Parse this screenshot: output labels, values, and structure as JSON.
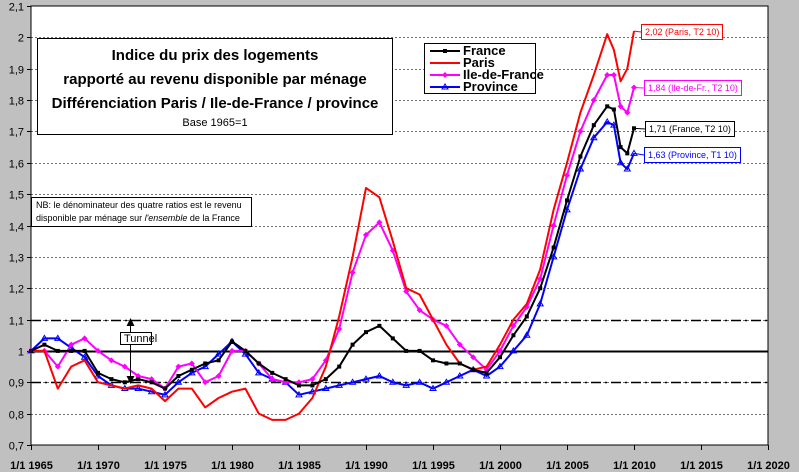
{
  "chart_data": {
    "type": "line",
    "title_lines": [
      "Indice du prix des logements",
      "rapporté au revenu disponible par ménage",
      "Différenciation Paris / Ile-de-France / province"
    ],
    "subtitle": "Base 1965=1",
    "note": {
      "text_before": "NB: le dénominateur des quatre ratios est le revenu disponible par ménage sur ",
      "italic": "l'ensemble",
      "text_after": " de la France"
    },
    "annotation": "Tunnel",
    "x_ticks": [
      "1/1 1965",
      "1/1 1970",
      "1/1 1975",
      "1/1 1980",
      "1/1 1985",
      "1/1 1990",
      "1/1 1995",
      "1/1 2000",
      "1/1 2005",
      "1/1 2010",
      "1/1 2015",
      "1/1 2020"
    ],
    "y_ticks": [
      "0,7",
      "0,8",
      "0,9",
      "1",
      "1,1",
      "1,2",
      "1,3",
      "1,4",
      "1,5",
      "1,6",
      "1,7",
      "1,8",
      "1,9",
      "2",
      "2,1"
    ],
    "xlim": [
      1965,
      2020
    ],
    "ylim": [
      0.7,
      2.1
    ],
    "reference_lines": {
      "solid": 1.0,
      "dashed": [
        1.1,
        0.9
      ]
    },
    "grid": "horizontal dashed",
    "legend_position": "top-center",
    "series": [
      {
        "name": "France",
        "color": "#000000",
        "marker": "square",
        "points": [
          [
            1965,
            1.0
          ],
          [
            1966,
            1.02
          ],
          [
            1967,
            1.0
          ],
          [
            1968,
            1.0
          ],
          [
            1969,
            1.0
          ],
          [
            1970,
            0.93
          ],
          [
            1971,
            0.91
          ],
          [
            1972,
            0.9
          ],
          [
            1973,
            0.91
          ],
          [
            1974,
            0.9
          ],
          [
            1975,
            0.88
          ],
          [
            1976,
            0.92
          ],
          [
            1977,
            0.94
          ],
          [
            1978,
            0.96
          ],
          [
            1979,
            0.97
          ],
          [
            1980,
            1.03
          ],
          [
            1981,
            1.0
          ],
          [
            1982,
            0.96
          ],
          [
            1983,
            0.93
          ],
          [
            1984,
            0.91
          ],
          [
            1985,
            0.89
          ],
          [
            1986,
            0.89
          ],
          [
            1987,
            0.91
          ],
          [
            1988,
            0.95
          ],
          [
            1989,
            1.02
          ],
          [
            1990,
            1.06
          ],
          [
            1991,
            1.08
          ],
          [
            1992,
            1.04
          ],
          [
            1993,
            1.0
          ],
          [
            1994,
            1.0
          ],
          [
            1995,
            0.97
          ],
          [
            1996,
            0.96
          ],
          [
            1997,
            0.96
          ],
          [
            1998,
            0.94
          ],
          [
            1999,
            0.93
          ],
          [
            2000,
            0.98
          ],
          [
            2001,
            1.05
          ],
          [
            2002,
            1.11
          ],
          [
            2003,
            1.2
          ],
          [
            2004,
            1.33
          ],
          [
            2005,
            1.48
          ],
          [
            2006,
            1.62
          ],
          [
            2007,
            1.72
          ],
          [
            2008,
            1.78
          ],
          [
            2008.5,
            1.77
          ],
          [
            2009,
            1.65
          ],
          [
            2009.5,
            1.63
          ],
          [
            2010,
            1.71
          ]
        ]
      },
      {
        "name": "Paris",
        "color": "#ff0000",
        "marker": "none",
        "points": [
          [
            1965,
            1.0
          ],
          [
            1966,
            1.0
          ],
          [
            1967,
            0.88
          ],
          [
            1968,
            0.95
          ],
          [
            1969,
            0.97
          ],
          [
            1970,
            0.9
          ],
          [
            1971,
            0.89
          ],
          [
            1972,
            0.88
          ],
          [
            1973,
            0.89
          ],
          [
            1974,
            0.88
          ],
          [
            1975,
            0.84
          ],
          [
            1976,
            0.88
          ],
          [
            1977,
            0.88
          ],
          [
            1978,
            0.82
          ],
          [
            1979,
            0.85
          ],
          [
            1980,
            0.87
          ],
          [
            1981,
            0.88
          ],
          [
            1982,
            0.8
          ],
          [
            1983,
            0.78
          ],
          [
            1984,
            0.78
          ],
          [
            1985,
            0.8
          ],
          [
            1986,
            0.85
          ],
          [
            1987,
            0.95
          ],
          [
            1988,
            1.11
          ],
          [
            1989,
            1.3
          ],
          [
            1990,
            1.52
          ],
          [
            1991,
            1.49
          ],
          [
            1992,
            1.35
          ],
          [
            1993,
            1.2
          ],
          [
            1994,
            1.18
          ],
          [
            1995,
            1.1
          ],
          [
            1996,
            1.02
          ],
          [
            1997,
            0.96
          ],
          [
            1998,
            0.94
          ],
          [
            1999,
            0.95
          ],
          [
            2000,
            1.02
          ],
          [
            2001,
            1.1
          ],
          [
            2002,
            1.15
          ],
          [
            2003,
            1.26
          ],
          [
            2004,
            1.45
          ],
          [
            2005,
            1.6
          ],
          [
            2006,
            1.76
          ],
          [
            2007,
            1.88
          ],
          [
            2008,
            2.01
          ],
          [
            2008.5,
            1.96
          ],
          [
            2009,
            1.86
          ],
          [
            2009.5,
            1.9
          ],
          [
            2010,
            2.02
          ]
        ]
      },
      {
        "name": "Ile-de-France",
        "color": "#ff00ff",
        "marker": "diamond",
        "points": [
          [
            1965,
            1.0
          ],
          [
            1966,
            1.0
          ],
          [
            1967,
            0.95
          ],
          [
            1968,
            1.02
          ],
          [
            1969,
            1.04
          ],
          [
            1970,
            1.0
          ],
          [
            1971,
            0.97
          ],
          [
            1972,
            0.95
          ],
          [
            1973,
            0.92
          ],
          [
            1974,
            0.91
          ],
          [
            1975,
            0.88
          ],
          [
            1976,
            0.95
          ],
          [
            1977,
            0.96
          ],
          [
            1978,
            0.9
          ],
          [
            1979,
            0.92
          ],
          [
            1980,
            1.0
          ],
          [
            1981,
            1.0
          ],
          [
            1982,
            0.96
          ],
          [
            1983,
            0.91
          ],
          [
            1984,
            0.9
          ],
          [
            1985,
            0.9
          ],
          [
            1986,
            0.91
          ],
          [
            1987,
            0.97
          ],
          [
            1988,
            1.07
          ],
          [
            1989,
            1.25
          ],
          [
            1990,
            1.37
          ],
          [
            1991,
            1.41
          ],
          [
            1992,
            1.32
          ],
          [
            1993,
            1.19
          ],
          [
            1994,
            1.13
          ],
          [
            1995,
            1.1
          ],
          [
            1996,
            1.08
          ],
          [
            1997,
            1.02
          ],
          [
            1998,
            0.98
          ],
          [
            1999,
            0.94
          ],
          [
            2000,
            1.0
          ],
          [
            2001,
            1.08
          ],
          [
            2002,
            1.14
          ],
          [
            2003,
            1.23
          ],
          [
            2004,
            1.4
          ],
          [
            2005,
            1.56
          ],
          [
            2006,
            1.7
          ],
          [
            2007,
            1.8
          ],
          [
            2008,
            1.88
          ],
          [
            2008.5,
            1.88
          ],
          [
            2009,
            1.78
          ],
          [
            2009.5,
            1.76
          ],
          [
            2010,
            1.84
          ]
        ]
      },
      {
        "name": "Province",
        "color": "#0000ff",
        "marker": "triangle",
        "points": [
          [
            1965,
            1.0
          ],
          [
            1966,
            1.04
          ],
          [
            1967,
            1.04
          ],
          [
            1968,
            1.01
          ],
          [
            1969,
            0.98
          ],
          [
            1970,
            0.92
          ],
          [
            1971,
            0.89
          ],
          [
            1972,
            0.88
          ],
          [
            1973,
            0.88
          ],
          [
            1974,
            0.87
          ],
          [
            1975,
            0.86
          ],
          [
            1976,
            0.9
          ],
          [
            1977,
            0.93
          ],
          [
            1978,
            0.95
          ],
          [
            1979,
            0.99
          ],
          [
            1980,
            1.03
          ],
          [
            1981,
            0.99
          ],
          [
            1982,
            0.93
          ],
          [
            1983,
            0.91
          ],
          [
            1984,
            0.9
          ],
          [
            1985,
            0.86
          ],
          [
            1986,
            0.87
          ],
          [
            1987,
            0.88
          ],
          [
            1988,
            0.89
          ],
          [
            1989,
            0.9
          ],
          [
            1990,
            0.91
          ],
          [
            1991,
            0.92
          ],
          [
            1992,
            0.9
          ],
          [
            1993,
            0.89
          ],
          [
            1994,
            0.9
          ],
          [
            1995,
            0.88
          ],
          [
            1996,
            0.9
          ],
          [
            1997,
            0.92
          ],
          [
            1998,
            0.94
          ],
          [
            1999,
            0.92
          ],
          [
            2000,
            0.95
          ],
          [
            2001,
            1.0
          ],
          [
            2002,
            1.05
          ],
          [
            2003,
            1.15
          ],
          [
            2004,
            1.3
          ],
          [
            2005,
            1.45
          ],
          [
            2006,
            1.58
          ],
          [
            2007,
            1.68
          ],
          [
            2008,
            1.73
          ],
          [
            2008.5,
            1.72
          ],
          [
            2009,
            1.6
          ],
          [
            2009.5,
            1.58
          ],
          [
            2010,
            1.63
          ]
        ]
      }
    ],
    "callouts": [
      {
        "series": "Paris",
        "text": "2,02 (Paris, T2 10)",
        "color": "#ff0000"
      },
      {
        "series": "Ile-de-France",
        "text": "1,84 (Ile-de-Fr., T2 10)",
        "color": "#ff00ff"
      },
      {
        "series": "France",
        "text": "1,71 (France, T2 10)",
        "color": "#000000"
      },
      {
        "series": "Province",
        "text": "1,63 (Province, T1 10)",
        "color": "#0000ff"
      }
    ]
  }
}
